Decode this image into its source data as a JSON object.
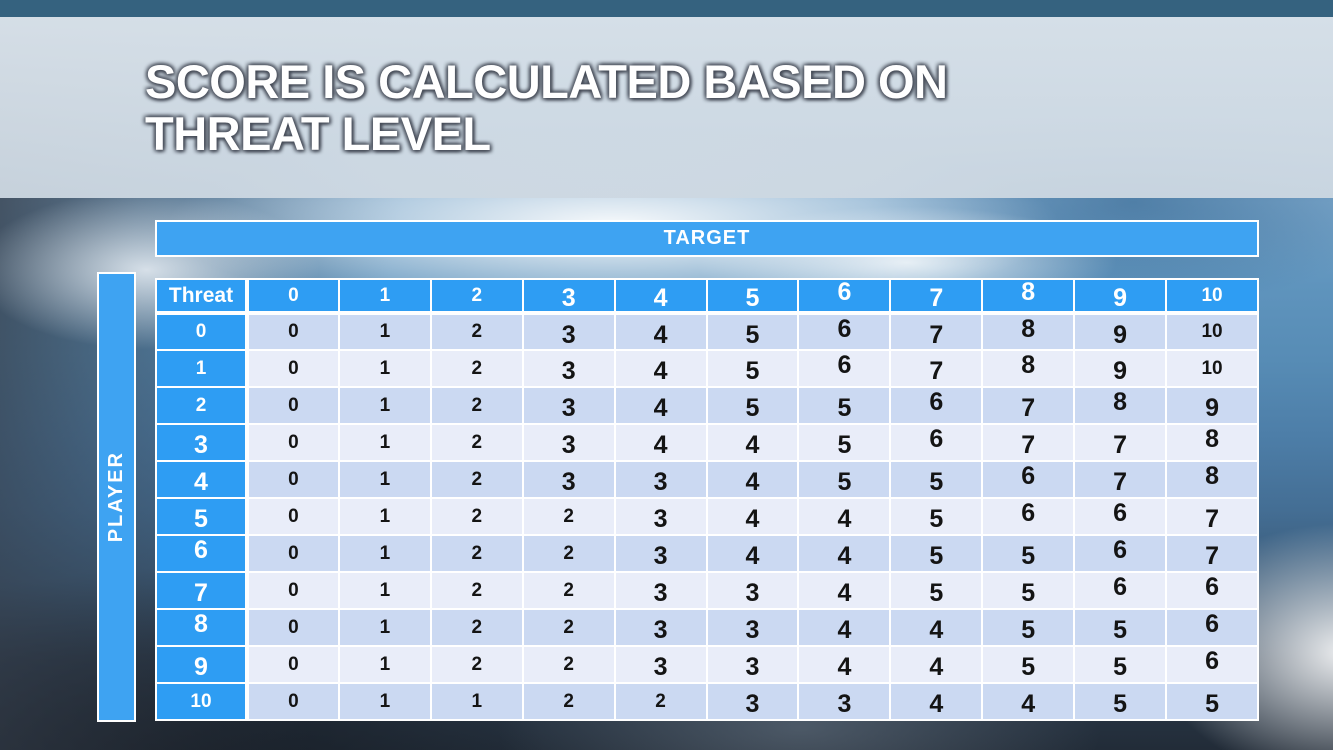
{
  "slide": {
    "title_line1": "SCORE IS CALCULATED BASED ON",
    "title_line2": "THREAT LEVEL"
  },
  "matrix": {
    "target_axis_label": "TARGET",
    "player_axis_label": "PLAYER",
    "corner_label": "Threat",
    "column_headers": [
      "0",
      "1",
      "2",
      "3",
      "4",
      "5",
      "6",
      "7",
      "8",
      "9",
      "10"
    ],
    "rows": [
      {
        "label": "0",
        "values": [
          "0",
          "1",
          "2",
          "3",
          "4",
          "5",
          "6",
          "7",
          "8",
          "9",
          "10"
        ]
      },
      {
        "label": "1",
        "values": [
          "0",
          "1",
          "2",
          "3",
          "4",
          "5",
          "6",
          "7",
          "8",
          "9",
          "10"
        ]
      },
      {
        "label": "2",
        "values": [
          "0",
          "1",
          "2",
          "3",
          "4",
          "5",
          "5",
          "6",
          "7",
          "8",
          "9"
        ]
      },
      {
        "label": "3",
        "values": [
          "0",
          "1",
          "2",
          "3",
          "4",
          "4",
          "5",
          "6",
          "7",
          "7",
          "8"
        ]
      },
      {
        "label": "4",
        "values": [
          "0",
          "1",
          "2",
          "3",
          "3",
          "4",
          "5",
          "5",
          "6",
          "7",
          "8"
        ]
      },
      {
        "label": "5",
        "values": [
          "0",
          "1",
          "2",
          "2",
          "3",
          "4",
          "4",
          "5",
          "6",
          "6",
          "7"
        ]
      },
      {
        "label": "6",
        "values": [
          "0",
          "1",
          "2",
          "2",
          "3",
          "4",
          "4",
          "5",
          "5",
          "6",
          "7"
        ]
      },
      {
        "label": "7",
        "values": [
          "0",
          "1",
          "2",
          "2",
          "3",
          "3",
          "4",
          "5",
          "5",
          "6",
          "6"
        ]
      },
      {
        "label": "8",
        "values": [
          "0",
          "1",
          "2",
          "2",
          "3",
          "3",
          "4",
          "4",
          "5",
          "5",
          "6"
        ]
      },
      {
        "label": "9",
        "values": [
          "0",
          "1",
          "2",
          "2",
          "3",
          "3",
          "4",
          "4",
          "5",
          "5",
          "6"
        ]
      },
      {
        "label": "10",
        "values": [
          "0",
          "1",
          "1",
          "2",
          "2",
          "3",
          "3",
          "4",
          "4",
          "5",
          "5"
        ]
      }
    ]
  },
  "colors": {
    "accent_blue": "#2E9DF3",
    "bar_blue": "#3EA3F2",
    "row_band_dark": "#CBD9F2",
    "row_band_light": "#E9EDF9",
    "gridline": "#FFFFFF",
    "title_text": "#FFFFFF",
    "body_number_text": "#141414"
  }
}
